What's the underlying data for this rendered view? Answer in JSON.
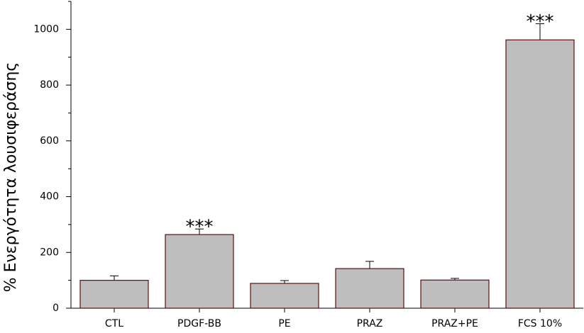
{
  "chart_data": {
    "type": "bar",
    "y_label": "% Ενεργότητα λουσιφεράσης",
    "categories": [
      "CTL",
      "PDGF-BB",
      "PE",
      "PRAZ",
      "PRAZ+PE",
      "FCS 10%"
    ],
    "values": [
      100,
      264,
      89,
      142,
      101,
      962
    ],
    "errors": [
      16,
      20,
      10,
      26,
      6,
      58
    ],
    "color": "#bebebe",
    "edge_color": "#5a0f0f",
    "annotations": [
      {
        "text": "***",
        "x": "PDGF-BB"
      },
      {
        "text": "***",
        "x": "FCS 10%"
      }
    ],
    "ylim": [
      0,
      1100
    ],
    "yticks": [
      0,
      200,
      400,
      600,
      800,
      1000
    ],
    "yminor_ticks": [
      100,
      300,
      500,
      700,
      900,
      1100
    ]
  }
}
